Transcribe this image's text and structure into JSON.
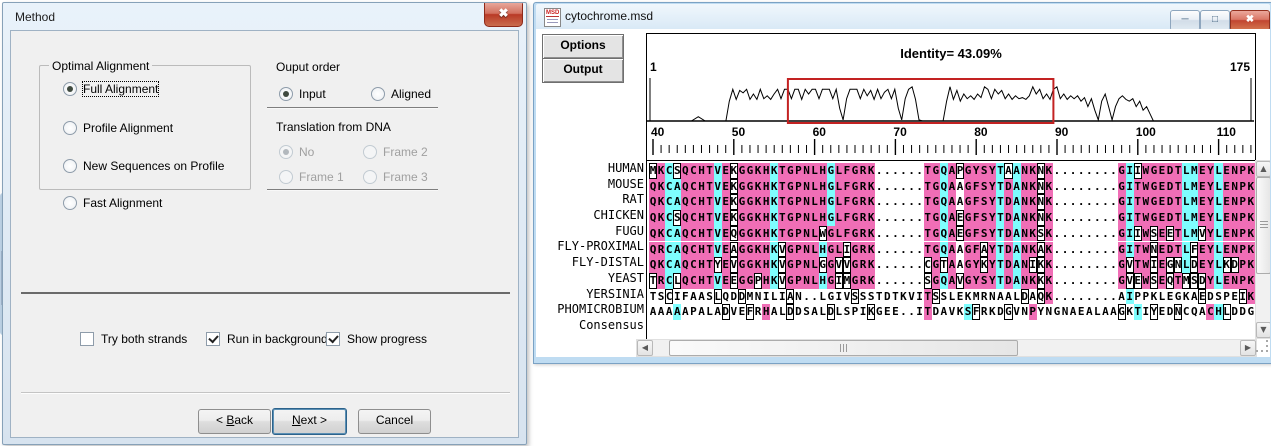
{
  "colors": {
    "pink": "#F06EB6",
    "cyan": "#7EFEFE",
    "red_box": "#C32222",
    "accent_blue": "#BFDCF2"
  },
  "method_dialog": {
    "title": "Method",
    "optimal_alignment": {
      "label": "Optimal Alignment",
      "options": [
        {
          "label": "Full Alignment",
          "selected": true
        },
        {
          "label": "Profile Alignment",
          "selected": false
        },
        {
          "label": "New Sequences on Profile",
          "selected": false
        }
      ]
    },
    "fast_alignment": {
      "label": "Fast Alignment",
      "selected": false
    },
    "output_order": {
      "label": "Ouput order",
      "options": [
        {
          "label": "Input",
          "selected": true
        },
        {
          "label": "Aligned",
          "selected": false
        }
      ]
    },
    "translation": {
      "label": "Translation from DNA",
      "options": [
        {
          "label": "No",
          "selected": true
        },
        {
          "label": "Frame 2",
          "selected": false
        },
        {
          "label": "Frame 1",
          "selected": false
        },
        {
          "label": "Frame 3",
          "selected": false
        }
      ]
    },
    "checkboxes": [
      {
        "label": "Try both strands",
        "checked": false
      },
      {
        "label": "Run in background",
        "checked": true
      },
      {
        "label": "Show progress",
        "checked": true
      }
    ],
    "buttons": {
      "back": {
        "pre": "< ",
        "accel": "B",
        "post": "ack"
      },
      "next": {
        "pre": "",
        "accel": "N",
        "post": "ext >"
      },
      "cancel": {
        "pre": "",
        "accel": "",
        "post": "Cancel"
      }
    }
  },
  "msd_window": {
    "title": "cytochrome.msd",
    "icon_text": "MSD",
    "buttons": [
      "Options",
      "Output"
    ],
    "chart": {
      "type": "line",
      "title": "Identity= 43.09%",
      "x_start_label": "1",
      "x_end_label": "175",
      "x_range": [
        1,
        175
      ],
      "y_range": [
        0,
        100
      ],
      "red_box_range": [
        41,
        118
      ],
      "points": [
        [
          1,
          0
        ],
        [
          13,
          0
        ],
        [
          15,
          12
        ],
        [
          17,
          0
        ],
        [
          23,
          0
        ],
        [
          24,
          55
        ],
        [
          25,
          88
        ],
        [
          26,
          60
        ],
        [
          27,
          85
        ],
        [
          28,
          78
        ],
        [
          29,
          88
        ],
        [
          30,
          60
        ],
        [
          31,
          75
        ],
        [
          32,
          60
        ],
        [
          33,
          88
        ],
        [
          34,
          62
        ],
        [
          35,
          70
        ],
        [
          36,
          60
        ],
        [
          37,
          75
        ],
        [
          38,
          88
        ],
        [
          39,
          62
        ],
        [
          40,
          88
        ],
        [
          41,
          88
        ],
        [
          42,
          62
        ],
        [
          43,
          88
        ],
        [
          44,
          88
        ],
        [
          45,
          60
        ],
        [
          46,
          88
        ],
        [
          47,
          75
        ],
        [
          48,
          88
        ],
        [
          49,
          88
        ],
        [
          50,
          62
        ],
        [
          51,
          88
        ],
        [
          52,
          88
        ],
        [
          53,
          88
        ],
        [
          54,
          62
        ],
        [
          55,
          88
        ],
        [
          56,
          35
        ],
        [
          57,
          3
        ],
        [
          58,
          62
        ],
        [
          59,
          88
        ],
        [
          60,
          88
        ],
        [
          61,
          88
        ],
        [
          62,
          62
        ],
        [
          63,
          88
        ],
        [
          64,
          70
        ],
        [
          65,
          85
        ],
        [
          66,
          60
        ],
        [
          67,
          88
        ],
        [
          68,
          62
        ],
        [
          69,
          80
        ],
        [
          70,
          88
        ],
        [
          71,
          62
        ],
        [
          72,
          88
        ],
        [
          73,
          35
        ],
        [
          74,
          3
        ],
        [
          75,
          62
        ],
        [
          76,
          88
        ],
        [
          77,
          95
        ],
        [
          78,
          60
        ],
        [
          79,
          3
        ],
        [
          80,
          0
        ],
        [
          86,
          0
        ],
        [
          87,
          55
        ],
        [
          88,
          95
        ],
        [
          89,
          60
        ],
        [
          90,
          85
        ],
        [
          91,
          55
        ],
        [
          92,
          75
        ],
        [
          93,
          62
        ],
        [
          94,
          70
        ],
        [
          95,
          60
        ],
        [
          96,
          75
        ],
        [
          97,
          65
        ],
        [
          98,
          95
        ],
        [
          99,
          88
        ],
        [
          100,
          62
        ],
        [
          101,
          88
        ],
        [
          102,
          75
        ],
        [
          103,
          85
        ],
        [
          104,
          62
        ],
        [
          105,
          75
        ],
        [
          106,
          60
        ],
        [
          107,
          70
        ],
        [
          108,
          62
        ],
        [
          109,
          65
        ],
        [
          110,
          60
        ],
        [
          111,
          70
        ],
        [
          112,
          95
        ],
        [
          113,
          75
        ],
        [
          114,
          88
        ],
        [
          115,
          62
        ],
        [
          116,
          75
        ],
        [
          117,
          60
        ],
        [
          118,
          88
        ],
        [
          119,
          95
        ],
        [
          120,
          62
        ],
        [
          121,
          75
        ],
        [
          122,
          60
        ],
        [
          123,
          70
        ],
        [
          124,
          62
        ],
        [
          125,
          70
        ],
        [
          126,
          55
        ],
        [
          127,
          65
        ],
        [
          128,
          40
        ],
        [
          129,
          62
        ],
        [
          130,
          30
        ],
        [
          131,
          3
        ],
        [
          132,
          55
        ],
        [
          133,
          75
        ],
        [
          134,
          40
        ],
        [
          135,
          3
        ],
        [
          136,
          40
        ],
        [
          137,
          62
        ],
        [
          138,
          70
        ],
        [
          139,
          60
        ],
        [
          140,
          55
        ],
        [
          141,
          62
        ],
        [
          142,
          40
        ],
        [
          143,
          55
        ],
        [
          144,
          30
        ],
        [
          145,
          40
        ],
        [
          146,
          20
        ],
        [
          147,
          0
        ],
        [
          175,
          0
        ]
      ]
    },
    "ruler": {
      "start": 40,
      "end": 114,
      "major_every": 10
    },
    "alignment": {
      "rows": [
        {
          "name": "HUMAN",
          "seq": "MKCSQCHTVEKGGKHKTGPNLHGLFGRK......TGQAPGYSYTAANKNK........GIIWGEDTLMEYLENPK",
          "colors": "bpcbppppcpbppppcppppppcpppppwwwwwwppcpbppppcbcppbpwwwwwwwwpcbpppppccppcpppp"
        },
        {
          "name": "MOUSE",
          "seq": "QKCAQCHTVEKGGKHKTGPNLHGLFGRK......TGQAAGFSYTDANKNK........GITWGEDTLMEYLENPK",
          "colors": "ppccppppcpbppppcppppppcpppppwwwwwwppcpwppppcpcppbpwwwwwwwwpcppppppccppcpppp"
        },
        {
          "name": "RAT",
          "seq": "QKCAQCHTVEKGGKHKTGPNLHGLFGRK......TGQAAGFSYTDANKNK........GITWGEDTLMEYLENPK",
          "colors": "ppccppppcpbppppcppppppcpppppwwwwwwppcpwppppcpcppbpwwwwwwwwpcppppppccppcpppp"
        },
        {
          "name": "CHICKEN",
          "seq": "QKCSQCHTVEKGGKHKTGPNLHGLFGRK......TGQAEGFSYTDANKNK........GITWGEDTLMEYLENPK",
          "colors": "ppcbppppcpbppppcppppppcpppppwwwwwwppcpbppppcpcppbpwwwwwwwwpcppppppccppcpppp"
        },
        {
          "name": "FUGU",
          "seq": "QKCAQCHTVEQGGKHKTGPNLWGLFGRK......TGQAEGFSYTDANKSK........GIIWSEETLMVYLENPK",
          "colors": "ppccppppcpbppppcpppppbppppppwwwwwwppcpbppppcpcppbpwwwwwwwwpcbpbpbpccbpcpppp"
        },
        {
          "name": "FLY-PROXIMAL",
          "seq": "QRCAQCHTVEAGGKHKVGPNLHGLIGRK......TGQAAGFAYTDANKAK........GITWNEDTLFEYLENPK",
          "colors": "ppccppppcpbppppcbppppcppbpppwwwwwwppcpwppbpcpcppbpwwwwwwwwpcppbpppcbppcpppp"
        },
        {
          "name": "FLY-DISTAL",
          "seq": "QKCAQCHTYEVGGKHKVGPNLGGVVGRK......CGTAAGYKYTDANIKK........GVTWIEGNLDEYLKDPK",
          "colors": "ppccppppbpbppppcbppppbpbbpppwwwwwwbpbpwppbpcpcpbbpwwwwwwwwpbppbpbbcbppcbbpp"
        },
        {
          "name": "YEAST",
          "seq": "TRCLQCHTVEEGGPHKVGPNLHGIMGRK......SGQAVGYSYTDANKKK........GVEWSEQTMSDYLENPK",
          "colors": "bpcbppppcpbppbpcbppppcpbbpppwwwwwwbpcpbppppcpcppbpwwwwwwwwpbbpbpbpbbbpcpppp"
        },
        {
          "name": "YERSINIA",
          "seq": "TSCIFAASLQDDMNILIAN..LGIVSSSTDTKVITSSLEKMRNAALDAQK........AIPPKLEGKAEDSPEIK",
          "colors": "wwbwwwwwbwwbwwwwwbwwwwwwwbwwwwwwwwpbwwwwwwwwwwbwbpwwwwwwwwwcwwwwwwwwbwwwwbp"
        },
        {
          "name": "PHOMICROBIUM",
          "seq": "AAAAAPALADVEFRHALDDSALDLSPIKGEE..ITDAVKSFRKDGVNPYNGNAEALAAGKTIYEDNCQACHLDDG",
          "colors": "wwwcwwwwwbwwbwpwwbwwwwbwwwwbwwwwwwpwwwwcbwwwbwwpwwwwwwwwwwbwcwbwwbwwwpcbwww"
        },
        {
          "name": "Consensus",
          "seq": "                                                                           ",
          "colors": "wwwwwwwwwwwwwwwwwwwwwwwwwwwwwwwwwwwwwwwwwwwwwwwwwwwwwwwwwwwwwwwwwwwwwwwwwww"
        }
      ]
    }
  }
}
